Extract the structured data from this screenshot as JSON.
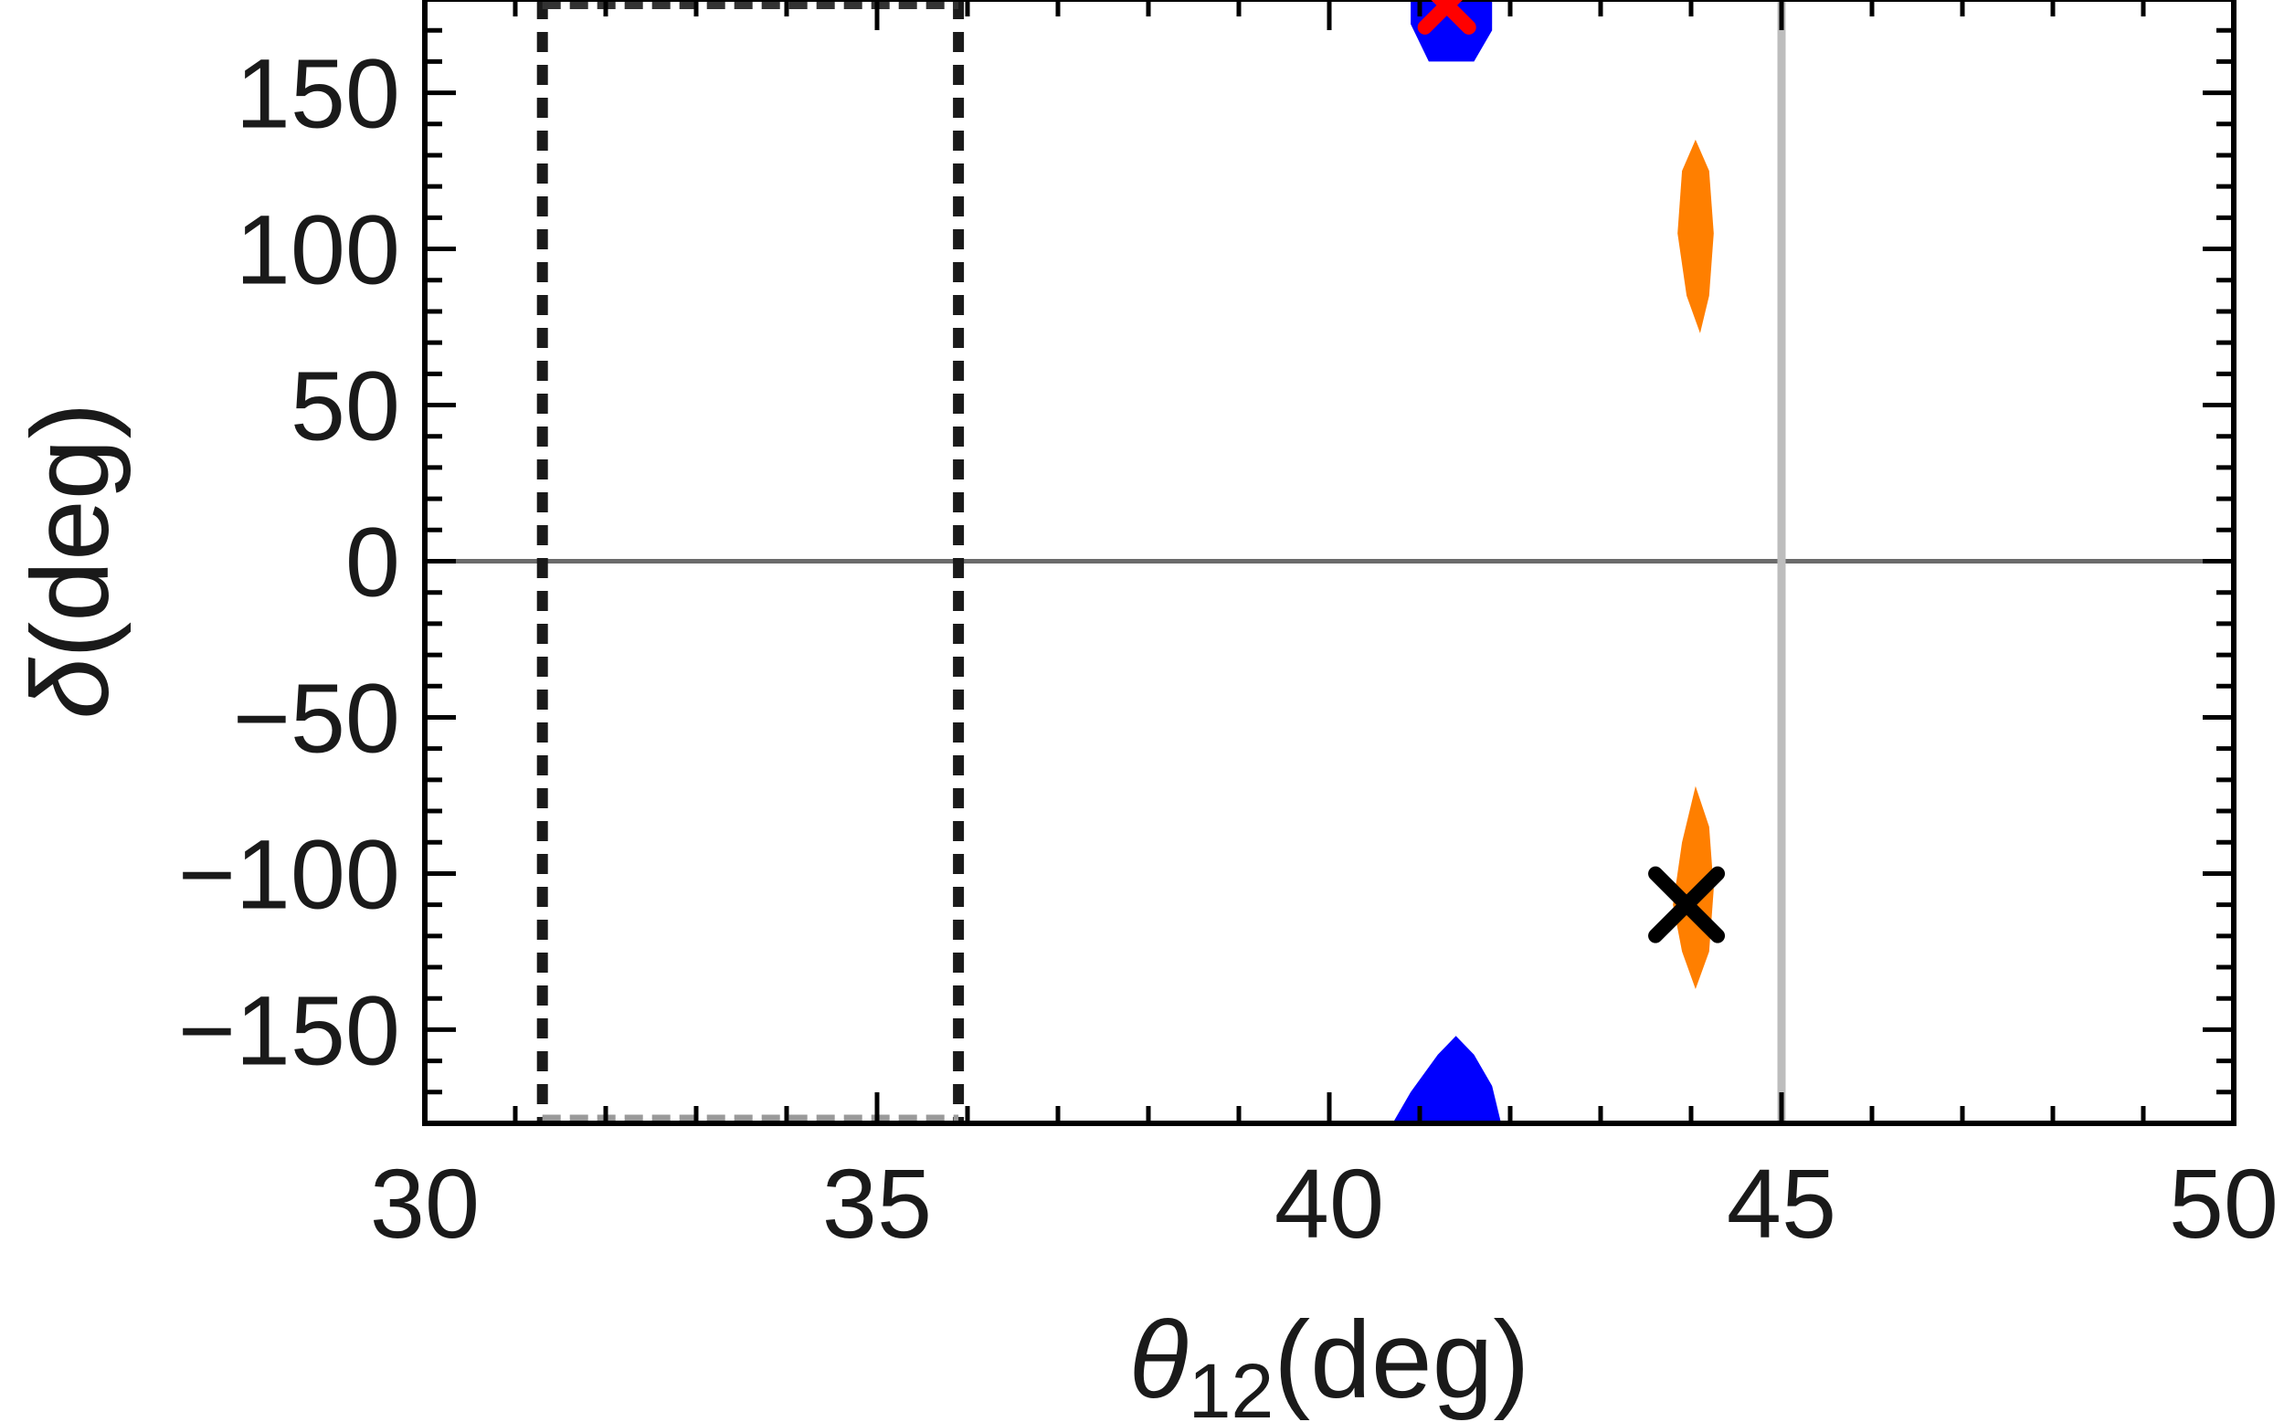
{
  "chart_data": {
    "type": "scatter",
    "xlabel": {
      "symbol": "θ",
      "subscript": "12",
      "unit": "(deg)"
    },
    "ylabel": {
      "symbol": "δ",
      "unit": "(deg)"
    },
    "xlim": [
      30,
      50
    ],
    "ylim": [
      -180,
      180
    ],
    "x_ticks": [
      30,
      35,
      40,
      45,
      50
    ],
    "y_ticks": [
      -150,
      -100,
      -50,
      0,
      50,
      100,
      150
    ],
    "y_tick_labels": [
      "−150",
      "−100",
      "−50",
      "0",
      "50",
      "100",
      "150"
    ],
    "x_minor_step": 1,
    "y_minor_step": 10,
    "grid": false,
    "reference_lines": [
      {
        "orientation": "horizontal",
        "value": 0,
        "color": "#6b6b6b"
      },
      {
        "orientation": "vertical",
        "value": 45,
        "color": "#bdbdbd"
      }
    ],
    "band": {
      "x_range": [
        31.3,
        35.9
      ],
      "style": "dashed",
      "color": "#1a1a1a"
    },
    "regions": [
      {
        "color": "#0000ff",
        "polygon": [
          [
            40.9,
            180
          ],
          [
            41.8,
            180
          ],
          [
            41.8,
            170
          ],
          [
            41.6,
            160
          ],
          [
            41.1,
            160
          ],
          [
            40.9,
            172
          ]
        ]
      },
      {
        "color": "#0000ff",
        "polygon": [
          [
            40.7,
            -180
          ],
          [
            41.9,
            -180
          ],
          [
            41.8,
            -168
          ],
          [
            41.6,
            -158
          ],
          [
            41.4,
            -152
          ],
          [
            41.2,
            -158
          ],
          [
            40.9,
            -170
          ]
        ]
      },
      {
        "color": "#ff7f00",
        "polygon": [
          [
            44.05,
            135
          ],
          [
            44.2,
            125
          ],
          [
            44.25,
            105
          ],
          [
            44.2,
            85
          ],
          [
            44.1,
            73
          ],
          [
            43.95,
            85
          ],
          [
            43.85,
            105
          ],
          [
            43.9,
            125
          ]
        ]
      },
      {
        "color": "#ff7f00",
        "polygon": [
          [
            44.05,
            -72
          ],
          [
            44.2,
            -85
          ],
          [
            44.25,
            -105
          ],
          [
            44.2,
            -125
          ],
          [
            44.05,
            -137
          ],
          [
            43.9,
            -125
          ],
          [
            43.8,
            -110
          ],
          [
            43.9,
            -90
          ]
        ]
      }
    ],
    "markers": [
      {
        "x": 43.95,
        "y": -110,
        "symbol": "x",
        "color": "#000000"
      },
      {
        "x": 41.3,
        "y": 178,
        "symbol": "x",
        "color": "#ff0000"
      }
    ],
    "colors": {
      "frame": "#000000",
      "tick_label": "#1a1a1a",
      "blue": "#0000ff",
      "orange": "#ff7f00",
      "red": "#ff0000"
    }
  }
}
